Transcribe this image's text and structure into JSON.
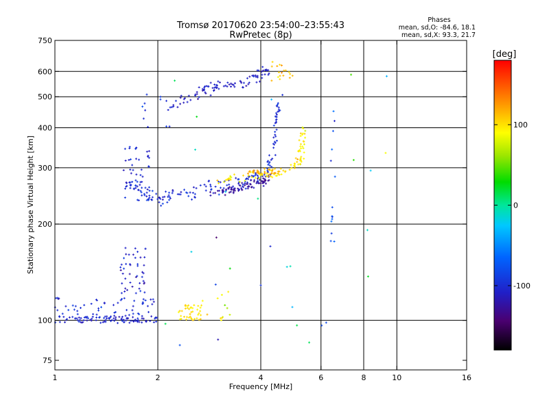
{
  "chart_data": {
    "type": "scatter",
    "title": "Tromsø 20170620 23:54:00–23:55:43",
    "subtitle": "RwPretec (8p)",
    "xlabel": "Frequency [MHz]",
    "ylabel": "Stationary phase Virtual Height [km]",
    "xscale": "log",
    "yscale": "log",
    "xlim": [
      1,
      16
    ],
    "ylim": [
      70,
      750
    ],
    "x_ticks": [
      1,
      2,
      4,
      6,
      8,
      10,
      16
    ],
    "y_ticks": [
      75,
      100,
      200,
      300,
      400,
      500,
      600,
      750
    ],
    "x_gridlines": [
      2,
      4,
      6,
      8,
      10
    ],
    "y_gridlines": [
      100,
      200,
      300,
      400,
      500,
      600
    ],
    "stats": {
      "heading": "Phases",
      "o_line": "mean, sd,O: -84.6, 18.1",
      "x_line": "mean, sd,X:  93.3, 21.7"
    },
    "colorbar": {
      "label": "[deg]",
      "range": [
        -180,
        180
      ],
      "ticks": [
        100,
        0,
        -100
      ]
    },
    "clusters": [
      {
        "kind": "band",
        "x0": 1.0,
        "x1": 2.0,
        "y0": 98,
        "y1": 103,
        "phase": -105,
        "spread": 12,
        "n": 95
      },
      {
        "kind": "box",
        "x0": 1.0,
        "x1": 1.95,
        "y0": 103,
        "y1": 118,
        "phase": -100,
        "spread": 15,
        "n": 55
      },
      {
        "kind": "box",
        "x0": 1.55,
        "x1": 1.85,
        "y0": 118,
        "y1": 170,
        "phase": -105,
        "spread": 18,
        "n": 45
      },
      {
        "kind": "box",
        "x0": 2.3,
        "x1": 2.7,
        "y0": 100,
        "y1": 112,
        "phase": 100,
        "spread": 12,
        "n": 40
      },
      {
        "kind": "box",
        "x0": 2.7,
        "x1": 3.3,
        "y0": 100,
        "y1": 125,
        "phase": 85,
        "spread": 40,
        "n": 12
      },
      {
        "kind": "line",
        "x": [
          1.6,
          1.7,
          1.85,
          2.0,
          2.2,
          2.5,
          2.8,
          3.1,
          3.4,
          3.7,
          4.0
        ],
        "y": [
          285,
          265,
          250,
          240,
          242,
          250,
          258,
          262,
          268,
          275,
          282
        ],
        "jitter": 0.05,
        "phase": -100,
        "spread": 15,
        "n": 130
      },
      {
        "kind": "box",
        "x0": 1.6,
        "x1": 1.9,
        "y0": 230,
        "y1": 350,
        "phase": -105,
        "spread": 15,
        "n": 45
      },
      {
        "kind": "line",
        "x": [
          2.8,
          3.2,
          3.6,
          4.0,
          4.2
        ],
        "y": [
          250,
          255,
          262,
          272,
          278
        ],
        "jitter": 0.03,
        "phase": -125,
        "spread": 12,
        "n": 80
      },
      {
        "kind": "line",
        "x": [
          3.0,
          3.5,
          4.0,
          4.5,
          5.0,
          5.2,
          5.3,
          5.35
        ],
        "y": [
          275,
          280,
          285,
          288,
          300,
          320,
          350,
          400
        ],
        "jitter": 0.03,
        "phase": 95,
        "spread": 20,
        "n": 95
      },
      {
        "kind": "line",
        "x": [
          3.5,
          4.0,
          4.3,
          4.5
        ],
        "y": [
          285,
          290,
          292,
          290
        ],
        "jitter": 0.02,
        "phase": 120,
        "spread": 15,
        "n": 30
      },
      {
        "kind": "line",
        "x": [
          4.2,
          4.3,
          4.4,
          4.45,
          4.5
        ],
        "y": [
          290,
          320,
          360,
          420,
          480
        ],
        "jitter": 0.03,
        "phase": -100,
        "spread": 12,
        "n": 45
      },
      {
        "kind": "box",
        "x0": 1.8,
        "x1": 2.2,
        "y0": 400,
        "y1": 510,
        "phase": -95,
        "spread": 15,
        "n": 12
      },
      {
        "kind": "line",
        "x": [
          2.2,
          2.5,
          2.8,
          3.1,
          3.4,
          3.7,
          4.0,
          4.2
        ],
        "y": [
          470,
          500,
          530,
          545,
          550,
          565,
          590,
          610
        ],
        "jitter": 0.04,
        "phase": -110,
        "spread": 15,
        "n": 95
      },
      {
        "kind": "box",
        "x0": 4.3,
        "x1": 5.0,
        "y0": 560,
        "y1": 650,
        "phase": 110,
        "spread": 20,
        "n": 18
      },
      {
        "kind": "box",
        "x0": 6.4,
        "x1": 6.6,
        "y0": 160,
        "y1": 480,
        "phase": -90,
        "spread": 40,
        "n": 14
      },
      {
        "kind": "box",
        "x0": 2.0,
        "x1": 9.5,
        "y0": 75,
        "y1": 600,
        "phase": 0,
        "spread": 120,
        "n": 30
      }
    ]
  }
}
